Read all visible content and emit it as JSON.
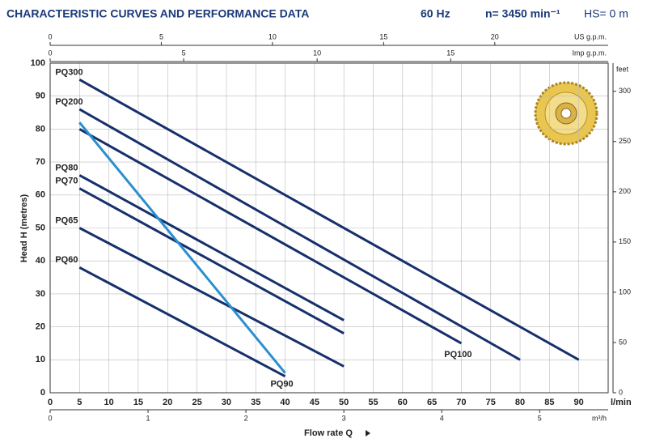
{
  "chart_data": {
    "type": "line",
    "title": "CHARACTERISTIC CURVES AND PERFORMANCE DATA",
    "frequency": "60 Hz",
    "speed": "n= 3450 min⁻¹",
    "suction": "HS= 0 m",
    "x_label": "Flow rate Q",
    "x_unit": "l/min",
    "y_label": "Head H (metres)",
    "xlim": [
      0,
      95
    ],
    "xticks": [
      0,
      5,
      10,
      15,
      20,
      25,
      30,
      35,
      40,
      45,
      50,
      55,
      60,
      65,
      70,
      75,
      80,
      85,
      90
    ],
    "ylim": [
      0,
      100
    ],
    "yticks": [
      0,
      10,
      20,
      30,
      40,
      50,
      60,
      70,
      80,
      90,
      100
    ],
    "us_gpm_axis": {
      "label": "US g.p.m.",
      "lim": [
        0,
        25.1
      ],
      "ticks": [
        0,
        5,
        10,
        15,
        20
      ]
    },
    "imp_gpm_axis": {
      "label": "Imp g.p.m.",
      "lim": [
        0,
        20.9
      ],
      "ticks": [
        0,
        5,
        10,
        15
      ]
    },
    "m3h_axis": {
      "label": "m³/h",
      "lim": [
        0,
        5.7
      ],
      "ticks": [
        0,
        1,
        2,
        3,
        4,
        5
      ]
    },
    "feet_axis": {
      "label": "feet",
      "lim": [
        0,
        328
      ],
      "ticks": [
        0,
        50,
        100,
        150,
        200,
        250,
        300
      ]
    },
    "grid": true,
    "series": [
      {
        "name": "PQ300",
        "color": "#16306b",
        "label_at": "start",
        "x": [
          5,
          90
        ],
        "values": [
          95,
          10
        ]
      },
      {
        "name": "PQ200",
        "color": "#16306b",
        "label_at": "start",
        "x": [
          5,
          80
        ],
        "values": [
          86,
          10
        ]
      },
      {
        "name": "PQ100",
        "color": "#16306b",
        "label_at": "end",
        "x": [
          5,
          70
        ],
        "values": [
          80,
          15
        ]
      },
      {
        "name": "PQ80",
        "color": "#16306b",
        "label_at": "start",
        "x": [
          5,
          50
        ],
        "values": [
          66,
          22
        ]
      },
      {
        "name": "PQ70",
        "color": "#16306b",
        "label_at": "start",
        "x": [
          5,
          50
        ],
        "values": [
          62,
          18
        ]
      },
      {
        "name": "PQ65",
        "color": "#16306b",
        "label_at": "start",
        "x": [
          5,
          50
        ],
        "values": [
          50,
          8
        ]
      },
      {
        "name": "PQ60",
        "color": "#16306b",
        "label_at": "start",
        "x": [
          5,
          40
        ],
        "values": [
          38,
          5
        ]
      },
      {
        "name": "PQ90",
        "color": "#2a8fd0",
        "label_at": "end",
        "x": [
          5,
          40
        ],
        "values": [
          82,
          6
        ]
      }
    ]
  }
}
